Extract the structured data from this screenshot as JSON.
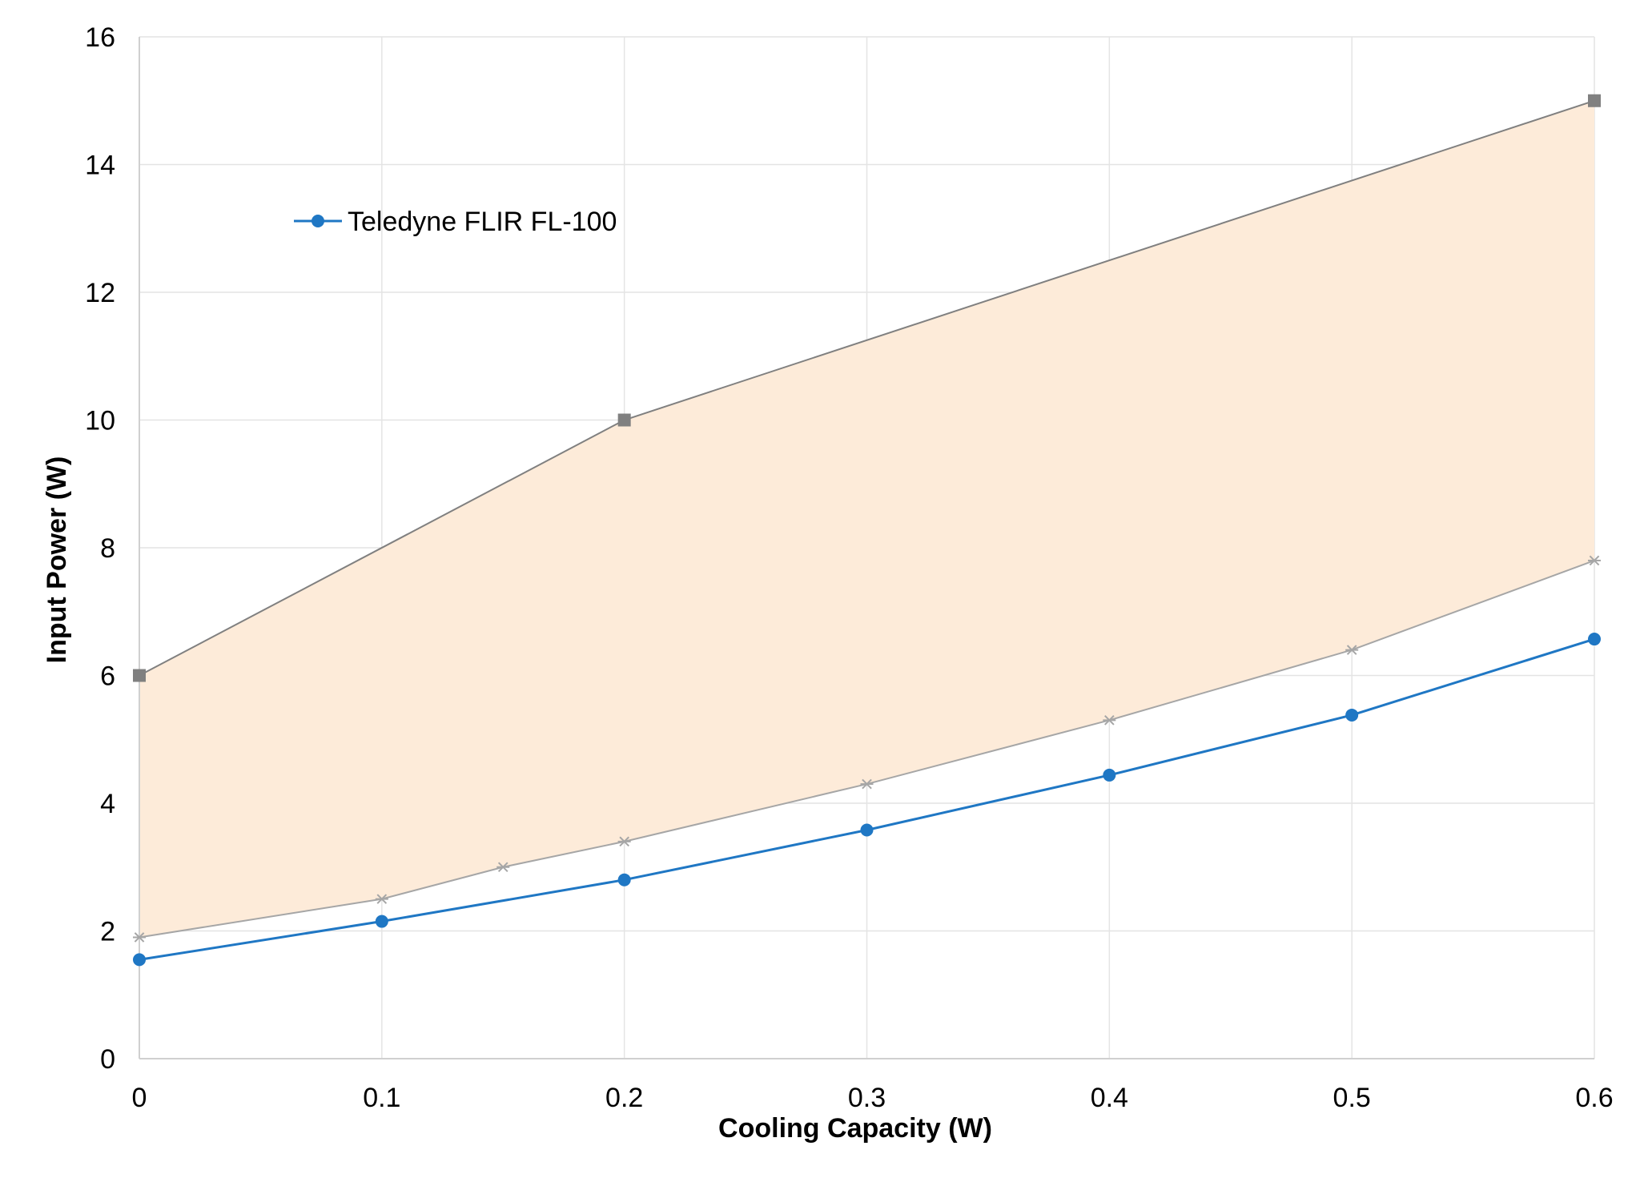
{
  "chart_data": {
    "type": "line",
    "title": "",
    "xlabel": "Cooling Capacity (W)",
    "ylabel": "Input Power (W)",
    "xlim": [
      0,
      0.6
    ],
    "ylim": [
      0,
      16
    ],
    "x_ticks": [
      0,
      0.1,
      0.2,
      0.3,
      0.4,
      0.5,
      0.6
    ],
    "x_tick_labels": [
      "0",
      "0.1",
      "0.2",
      "0.3",
      "0.4",
      "0.5",
      "0.6"
    ],
    "y_ticks": [
      0,
      2,
      4,
      6,
      8,
      10,
      12,
      14,
      16
    ],
    "y_tick_labels": [
      "0",
      "2",
      "4",
      "6",
      "8",
      "10",
      "12",
      "14",
      "16"
    ],
    "grid": true,
    "legend": {
      "placement": "upper-left",
      "entries": [
        "Teledyne FLIR FL-100"
      ]
    },
    "series": [
      {
        "name": "Teledyne FLIR FL-100",
        "color": "#1f77c4",
        "marker": "circle",
        "x": [
          0,
          0.1,
          0.2,
          0.3,
          0.4,
          0.5,
          0.6
        ],
        "y": [
          1.55,
          2.15,
          2.8,
          3.58,
          4.44,
          5.38,
          6.57
        ]
      },
      {
        "color": "#808080",
        "marker": "square",
        "x": [
          0,
          0.2,
          0.6
        ],
        "y": [
          6.0,
          10.0,
          15.0
        ]
      },
      {
        "color": "#a6a6a6",
        "marker": "asterisk",
        "x": [
          0,
          0.1,
          0.15,
          0.2,
          0.3,
          0.4,
          0.5,
          0.6
        ],
        "y": [
          1.9,
          2.5,
          3.0,
          3.4,
          4.3,
          5.3,
          6.4,
          7.8
        ]
      }
    ],
    "band": {
      "color": "#fdebd9",
      "between": "upper and lower gray series"
    }
  }
}
